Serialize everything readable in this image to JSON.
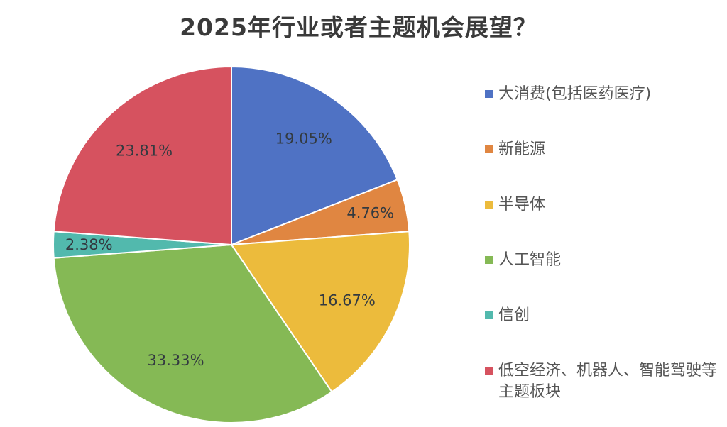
{
  "title": "2025年行业或者主题机会展望？",
  "legend": [
    {
      "label": "大消费(包括医药医疗)",
      "color": "#4f72c4"
    },
    {
      "label": "新能源",
      "color": "#e08641"
    },
    {
      "label": "半导体",
      "color": "#ecbb3c"
    },
    {
      "label": "人工智能",
      "color": "#85b955"
    },
    {
      "label": "信创",
      "color": "#52b9ad"
    },
    {
      "label": "低空经济、机器人、智能驾驶等主题板块",
      "color": "#d6525f"
    }
  ],
  "slice_labels": [
    "19.05%",
    "4.76%",
    "16.67%",
    "33.33%",
    "2.38%",
    "23.81%"
  ],
  "chart_data": {
    "type": "pie",
    "title": "2025年行业或者主题机会展望？",
    "categories": [
      "大消费(包括医药医疗)",
      "新能源",
      "半导体",
      "人工智能",
      "信创",
      "低空经济、机器人、智能驾驶等主题板块"
    ],
    "values": [
      19.05,
      4.76,
      16.67,
      33.33,
      2.38,
      23.81
    ],
    "unit": "%",
    "colors": [
      "#4f72c4",
      "#e08641",
      "#ecbb3c",
      "#85b955",
      "#52b9ad",
      "#d6525f"
    ],
    "start_angle": "12 o'clock, clockwise",
    "data_labels": true,
    "legend_position": "right"
  }
}
